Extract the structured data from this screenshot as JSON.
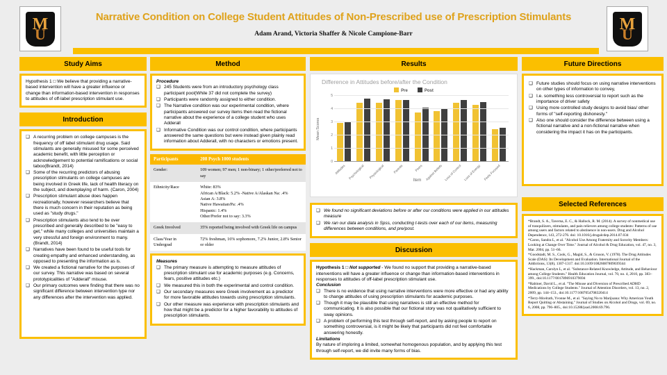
{
  "bullet_glyph": "❑",
  "header": {
    "title": "Narrative Condition on College Student Attitudes of Non-Prescribed use of Prescription Stimulants",
    "authors": "Adam Arand, Victoria Shaffer & Nicole Campione-Barr",
    "logo_m": "M",
    "logo_u": "U"
  },
  "colors": {
    "gold": "#fbbf00",
    "title_gold": "#dfa21b",
    "chart_pre": "#f1c232",
    "chart_post": "#3f3f3f"
  },
  "study_aims": {
    "title": "Study Aims",
    "body": "Hypothesis 1 □ We believe that providing a narrative-based intervention will have a greater influence or change than information-based intervention in responses to attitudes of off-label prescription stimulant use."
  },
  "introduction": {
    "title": "Introduction",
    "bullets": [
      "A recurring problem on college campuses is the frequency of off label stimulant drug usage. Said stimulants are generally misused for some perceived academic benefit, with little perception or acknowledgement to potential ramifications or social taboo(Brandt, 2014)",
      "Some of the recurring predictors of abusing prescription stimulants on college campuses are being involved in Greek life, lack of health literacy on the subject, and downplaying of harm. (Caron, 2004)",
      "Prescription stimulant abuse does happen recreationally, however researchers believe that there is much concern in their reputation as being used as \"study drugs.\"",
      "Prescription stimulants also tend to be over prescribed and generally described to be \"easy to get,\" while many colleges and universities maintain a very stressful and foreign environment to many. (Brandt, 2014)",
      "Narratives have been found to be useful tools for creating empathy and enhanced understanding, as opposed to presenting the information as is.",
      "We created a fictional narrative for the purposes of our survey. This narrative was based on several prototypicalities of \"Adderall\" misuse.",
      "Our primary outcomes were finding that there was no significant difference between intervention type nor any differences after the intervention was applied."
    ]
  },
  "method": {
    "title": "Method",
    "procedure_label": "Procedure",
    "procedure_bullets": [
      "245 Students were from an introductory psychology class participant pool(While 37 did not complete the survey)",
      "Participants were randomly assigned to either condition.",
      "The Narrative condition was our experimental condition, where participants answered our survey items then read the fictional narrative about the experience of a college student who uses Adderall",
      "Informative Condition was our control condition, where participants answered the same questions but were instead given plainly read information about Adderall, with no characters or emotions present."
    ],
    "measures_label": "Measures",
    "measures_bullets": [
      "The primary measure is attempting to measure attitudes of prescription stimulant use for academic purposes (e.g. Concerns, fears, positive attitudes etc.)",
      "We measured this in both the experimental and control condition.",
      "Our secondary measures were Greek involvement as a predictor for more favorable attitudes towards using prescription stimulants.",
      "Our other measure was experience with prescription stimulants and how that might be a predictor for a higher favorability to attitudes of prescription stimulants."
    ]
  },
  "participants_table": {
    "header": [
      "Participants",
      "208 Psych 1000 students"
    ],
    "rows": [
      [
        "Gender:",
        "109 women; 97 men; 1 non-binary; 1 other/preferred not to say"
      ],
      [
        "Ethnicity/Race",
        "White: 83%\nAfrican A/Black: 5.2% -Native A/Alaskan Na: .4%\nAsian A: 3.8%\nNative Hawaiian/Pa: .4%\nHispanic: 1.4%\nOther/Prefer not to say: 3.3%"
      ],
      [
        "Greek Involved",
        "35% reported being involved with Greek life on campus"
      ],
      [
        "Class/Year in Undergrad",
        "72% freshman, 16% sophomore, 7.2% Junior, 2.8% Senior or older"
      ]
    ]
  },
  "results": {
    "title": "Results",
    "findings": [
      "We found no significant deviations before or after our conditions were applied in our attitudes measure",
      "We ran our data analysis in Spss, conducting t-tests over each of our items, measuring differences between conditions, and pre/post."
    ]
  },
  "chart_data": {
    "type": "bar",
    "title": "Difference in Attitudes before/after the Condition",
    "xlabel": "Item",
    "ylabel": "Mean Scores",
    "ylim": [
      0,
      5
    ],
    "yticks": [
      0,
      1,
      2,
      3,
      4,
      5
    ],
    "legend_position": "top",
    "grid": true,
    "categories": [
      "Attitudes",
      "Psychological",
      "Physiological",
      "Parents",
      "Peers",
      "Against Beliefs",
      "Loss of Control",
      "Loss of Energy",
      "Feels Focused"
    ],
    "series": [
      {
        "name": "Pre",
        "color": "#f1c232",
        "values": [
          2.95,
          4.45,
          4.5,
          4.7,
          3.75,
          3.85,
          4.45,
          4.3,
          2.5
        ]
      },
      {
        "name": "Post",
        "color": "#3f3f3f",
        "values": [
          3.05,
          4.8,
          4.75,
          4.7,
          4.1,
          4.0,
          4.7,
          4.55,
          2.6
        ]
      }
    ]
  },
  "discussion": {
    "title": "Discussion",
    "hypothesis_prefix": "Hypothesis 1 □",
    "hypothesis_bold": "Not supported",
    "hypothesis_rest": "- We found no support that providing a narrative-based interventions will have a greater influence or change than information-based interventions in responses to attitudes of off-label prescription stimulant use.",
    "conclusion_label": "Conclusion",
    "conclusion_bullets": [
      "There is no evidence that using narrative interventions were more effective or had any ability to change attitudes of using prescription stimulants for academic purposes.",
      "Though it may be plausible that using narratives is still an effective method for communicating. It is also possible that our fictional story was not qualitatively sufficient to sway opinions.",
      "A problem of performing this test through self-report, and by asking people to report on something controversial, is it might be likely that participants did not feel comfortable answering honestly."
    ],
    "limitations_label": "Limitations",
    "limitations_text": "By nature of imploring a limited, somewhat homogenous population, and by applying this test through self-report, we did invite many forms of bias."
  },
  "future_directions": {
    "title": "Future Directions",
    "bullets": [
      "Future studies should focus on using narrative interventions on other types of information to convey,",
      "I.e. something less controversial to report such as the importance of driver safety",
      "Using more controlled study designs to avoid bias/ other forms of \"self-reporting dishonesty.\"",
      "Also one should consider the difference between using a fictional narrative and a non-fictional narrative when considering the impact it has on the participants."
    ]
  },
  "references": {
    "title": "Selected References",
    "items": [
      "*Brandt, S. A., Taverna, E. C., & Hallock, R. M. (2014). A survey of nonmedical use of tranquilizers, stimulants, and pain relievers among college students: Patterns of use among users and factors related to abstinence in non-users. Drug and Alcohol Dependence, 143, 272-276. doi: 10.1016/j.drugalcdep.2014.07.034",
      "*Caron, Sandra L, et al. \"Alcohol Use Among Fraternity and Sorority Members: Looking at Change Over Time.\" Journal of Alcohol & Drug Education, vol. 47, no. 3, Mar. 2004, pp. 51–66.",
      "*Goodstadt, M. S., Cook, G., Magid, S., & Gruson, V. (1978). The Drug Attitudes Scale (DAS): Its Development and Evaluation. International Journal of the Addictions, 13(8), 1307-1317. doi:10.3109/10826087809039344",
      "*Hackman, Carolyn L, et al. \"Substance-Related Knowledge, Attitude, and Behaviour among College Students.\" Health Education Journal, vol. 70, no. 4, 2010, pp. 383–399., doi:10.1177/0017896910379694",
      "*Rabiner, David L., et al. \"The Misuse and Diversion of Prescribed ADHD Medications by College Students.\" Journal of Attention Disorders, vol. 13, no. 2, 2009, pp. 144–153., doi:10.1177/1087054708320414",
      "*Terry-Mcelrath, Yvonne M., et al. \"Saying No to Marijuana: Why American Youth Report Quitting or Abstaining.\" Journal of Studies on Alcohol and Drugs, vol. 69, no. 6, 2008, pp. 796–805., doi:10.15288/jsad.2008.69.796."
    ]
  }
}
